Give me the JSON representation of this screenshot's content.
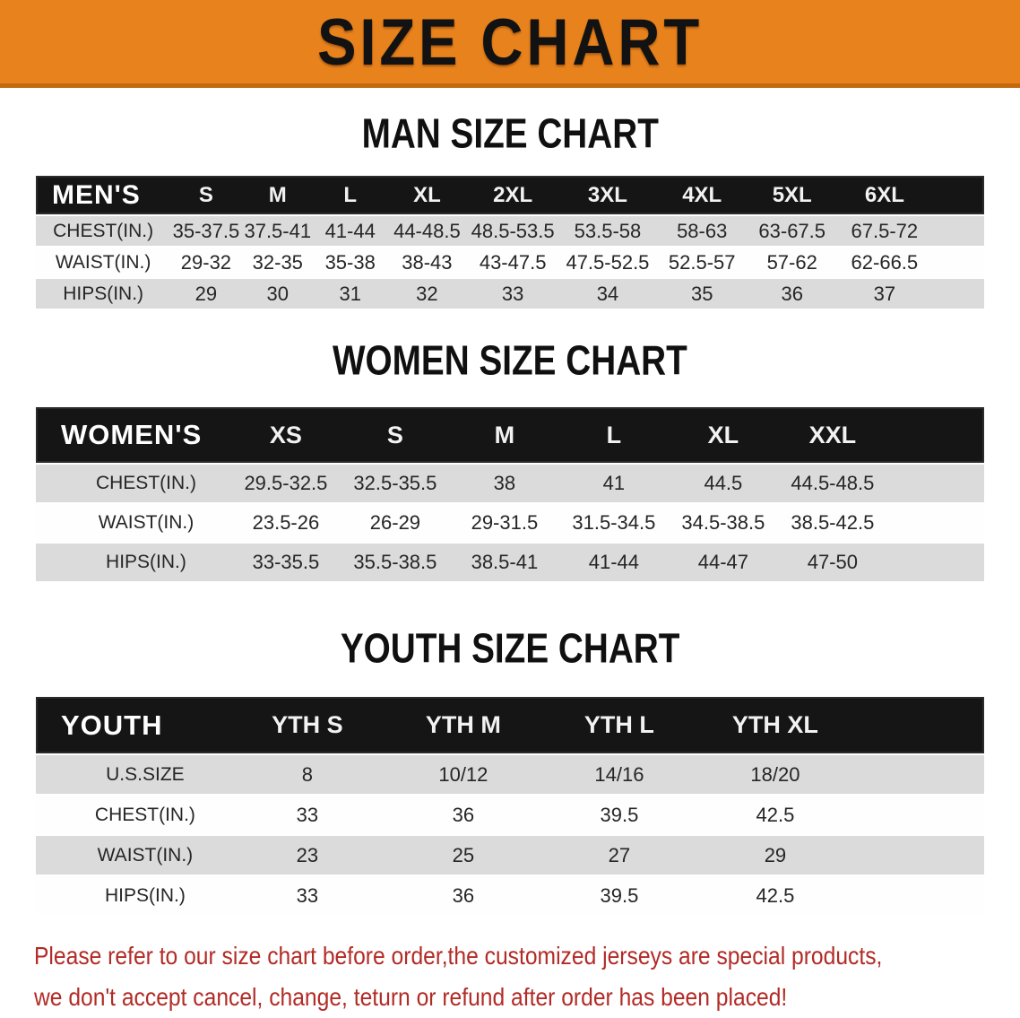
{
  "banner": {
    "title": "SIZE CHART"
  },
  "sections": [
    {
      "heading": "MAN SIZE CHART",
      "group_label": "MEN'S",
      "columns": [
        "S",
        "M",
        "L",
        "XL",
        "2XL",
        "3XL",
        "4XL",
        "5XL",
        "6XL"
      ],
      "rows": [
        {
          "label": "CHEST(IN.)",
          "values": [
            "35-37.5",
            "37.5-41",
            "41-44",
            "44-48.5",
            "48.5-53.5",
            "53.5-58",
            "58-63",
            "63-67.5",
            "67.5-72"
          ]
        },
        {
          "label": "WAIST(IN.)",
          "values": [
            "29-32",
            "32-35",
            "35-38",
            "38-43",
            "43-47.5",
            "47.5-52.5",
            "52.5-57",
            "57-62",
            "62-66.5"
          ]
        },
        {
          "label": "HIPS(IN.)",
          "values": [
            "29",
            "30",
            "31",
            "32",
            "33",
            "34",
            "35",
            "36",
            "37"
          ]
        }
      ]
    },
    {
      "heading": "WOMEN SIZE CHART",
      "group_label": "WOMEN'S",
      "columns": [
        "XS",
        "S",
        "M",
        "L",
        "XL",
        "XXL"
      ],
      "rows": [
        {
          "label": "CHEST(IN.)",
          "values": [
            "29.5-32.5",
            "32.5-35.5",
            "38",
            "41",
            "44.5",
            "44.5-48.5"
          ]
        },
        {
          "label": "WAIST(IN.)",
          "values": [
            "23.5-26",
            "26-29",
            "29-31.5",
            "31.5-34.5",
            "34.5-38.5",
            "38.5-42.5"
          ]
        },
        {
          "label": "HIPS(IN.)",
          "values": [
            "33-35.5",
            "35.5-38.5",
            "38.5-41",
            "41-44",
            "44-47",
            "47-50"
          ]
        }
      ]
    },
    {
      "heading": "YOUTH SIZE CHART",
      "group_label": "YOUTH",
      "columns": [
        "YTH S",
        "YTH M",
        "YTH L",
        "YTH XL"
      ],
      "rows": [
        {
          "label": "U.S.SIZE",
          "values": [
            "8",
            "10/12",
            "14/16",
            "18/20"
          ]
        },
        {
          "label": "CHEST(IN.)",
          "values": [
            "33",
            "36",
            "39.5",
            "42.5"
          ]
        },
        {
          "label": "WAIST(IN.)",
          "values": [
            "23",
            "25",
            "27",
            "29"
          ]
        },
        {
          "label": "HIPS(IN.)",
          "values": [
            "33",
            "36",
            "39.5",
            "42.5"
          ]
        }
      ]
    }
  ],
  "footer": {
    "lines": [
      "Please refer to our size chart before order,the customized jerseys are special products,",
      "we don't accept cancel, change, teturn or refund after order has been placed!"
    ]
  },
  "colors": {
    "banner_bg": "#E8821C",
    "banner_edge": "#C4690E",
    "band_bg": "#151515",
    "row_gray": "#DBDBDB",
    "row_white": "#FEFEFE",
    "text_dark": "#262626",
    "footer_red": "#B22B26"
  }
}
